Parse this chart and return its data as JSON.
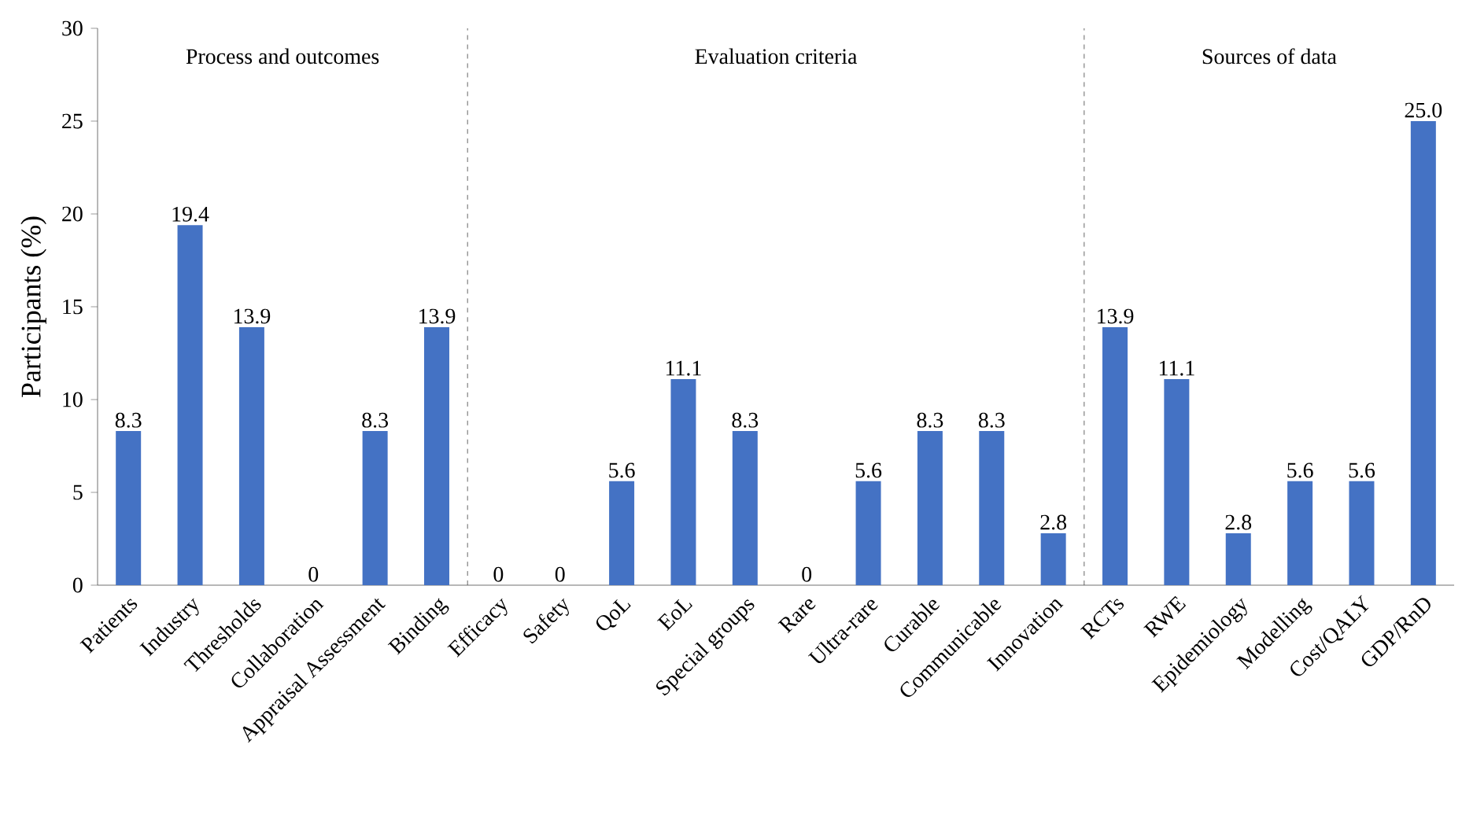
{
  "chart_data": {
    "type": "bar",
    "ylabel": "Participants (%)",
    "categories": [
      "Patients",
      "Industry",
      "Thresholds",
      "Collaboration",
      "Appraisal Assessment",
      "Binding",
      "Efficacy",
      "Safety",
      "QoL",
      "EoL",
      "Special groups",
      "Rare",
      "Ultra-rare",
      "Curable",
      "Communicable",
      "Innovation",
      "RCTs",
      "RWE",
      "Epidemiology",
      "Modelling",
      "Cost/QALY",
      "GDP/RnD"
    ],
    "values": [
      8.3,
      19.4,
      13.9,
      0,
      8.3,
      13.9,
      0,
      0,
      5.6,
      11.1,
      8.3,
      0,
      5.6,
      8.3,
      8.3,
      2.8,
      13.9,
      11.1,
      2.8,
      5.6,
      5.6,
      25.0
    ],
    "value_labels": [
      "8.3",
      "19.4",
      "13.9",
      "0",
      "8.3",
      "13.9",
      "0",
      "0",
      "5.6",
      "11.1",
      "8.3",
      "0",
      "5.6",
      "8.3",
      "8.3",
      "2.8",
      "13.9",
      "11.1",
      "2.8",
      "5.6",
      "5.6",
      "25.0"
    ],
    "color": "#4472c4",
    "ylim": [
      0,
      30
    ],
    "yticks": [
      0,
      5,
      10,
      15,
      20,
      25,
      30
    ],
    "grid": false,
    "annotations": [
      "Process and outcomes",
      "Evaluation criteria",
      "Sources of data"
    ]
  }
}
